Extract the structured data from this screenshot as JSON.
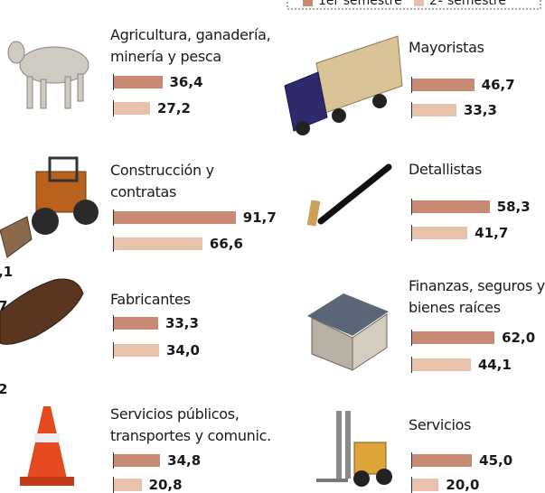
{
  "chart_data": {
    "type": "bar",
    "categories": [
      "Agricultura, ganadería, minería y pesca",
      "Mayoristas",
      "Construcción y contratas",
      "Detallistas",
      "Fabricantes",
      "Finanzas, seguros y bienes raíces",
      "Servicios públicos, transportes y comunic.",
      "Servicios"
    ],
    "series": [
      {
        "name": "1er semestre",
        "color": "#c98a74",
        "values": [
          36.4,
          46.7,
          91.7,
          58.3,
          33.3,
          62.0,
          34.8,
          45.0
        ],
        "value_labels": [
          "36,4",
          "46,7",
          "91,7",
          "58,3",
          "33,3",
          "62,0",
          "34,8",
          "45,0"
        ]
      },
      {
        "name": "2º semestre",
        "color": "#e8c2ad",
        "values": [
          27.2,
          33.3,
          66.6,
          41.7,
          34.0,
          44.1,
          20.8,
          20.0
        ],
        "value_labels": [
          "27,2",
          "33,3",
          "66,6",
          "41,7",
          "34,0",
          "44,1",
          "20,8",
          "20,0"
        ]
      }
    ],
    "edge_labels": [
      ",1",
      "7",
      "2"
    ]
  }
}
